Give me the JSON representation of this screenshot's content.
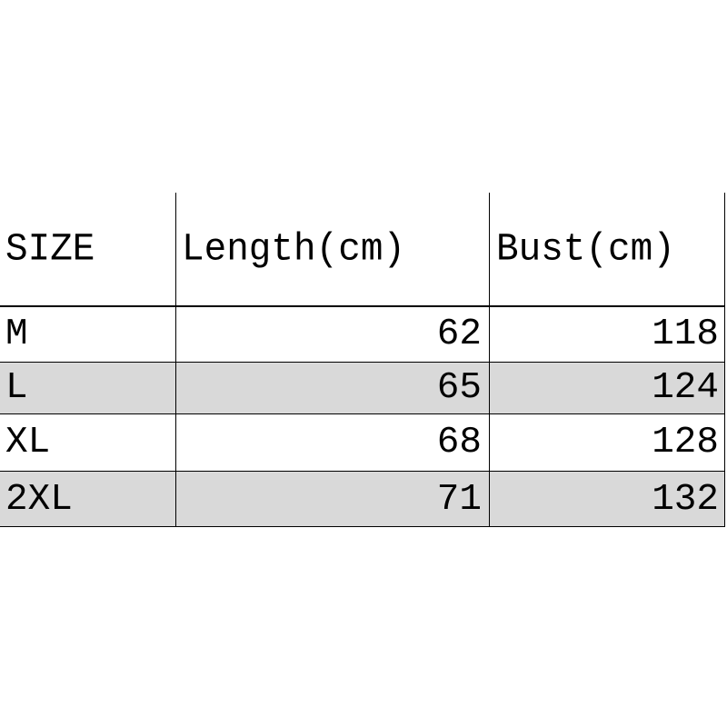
{
  "table": {
    "headers": [
      "SIZE",
      "Length(cm)",
      "Bust(cm)"
    ],
    "rows": [
      {
        "size": "M",
        "length": "62",
        "bust": "118"
      },
      {
        "size": "L",
        "length": "65",
        "bust": "124"
      },
      {
        "size": "XL",
        "length": "68",
        "bust": "128"
      },
      {
        "size": "2XL",
        "length": "71",
        "bust": "132"
      }
    ],
    "stripe_color": "#d9d9d9"
  }
}
